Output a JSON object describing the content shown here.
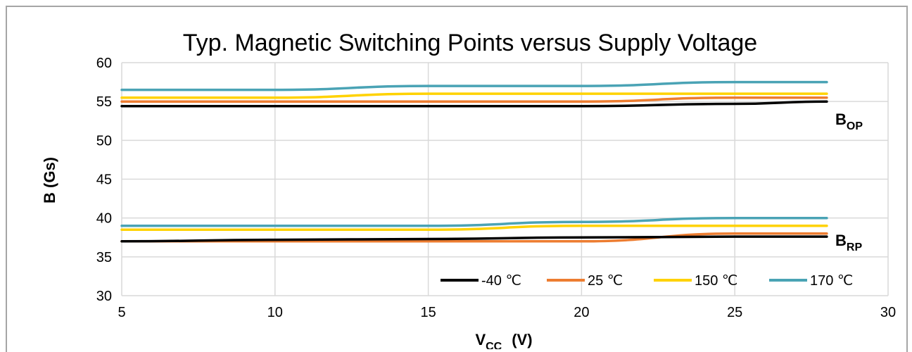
{
  "chart_data": {
    "type": "line",
    "title": "Typ. Magnetic Switching Points versus Supply Voltage",
    "xlabel": {
      "main": "V",
      "sub": "CC",
      "unit": "(V)"
    },
    "ylabel": "B  (Gs)",
    "xlim": [
      5,
      30
    ],
    "ylim": [
      30,
      60
    ],
    "xticks": [
      5,
      10,
      15,
      20,
      25,
      30
    ],
    "yticks": [
      30,
      35,
      40,
      45,
      50,
      55,
      60
    ],
    "grid": true,
    "legend": "bottom-right",
    "x": [
      5,
      10,
      15,
      20,
      25,
      28
    ],
    "series": [
      {
        "name": "-40 ℃",
        "color": "#000000",
        "group": "BOP",
        "values": [
          54.4,
          54.4,
          54.4,
          54.4,
          54.7,
          55.0
        ]
      },
      {
        "name": "25 ℃",
        "color": "#ed7d31",
        "group": "BOP",
        "values": [
          55.0,
          55.0,
          55.0,
          55.0,
          55.5,
          55.5
        ]
      },
      {
        "name": "150 ℃",
        "color": "#ffd200",
        "group": "BOP",
        "values": [
          55.5,
          55.5,
          56.0,
          56.0,
          56.0,
          56.0
        ]
      },
      {
        "name": "170 ℃",
        "color": "#4aa3b5",
        "group": "BOP",
        "values": [
          56.5,
          56.5,
          57.0,
          57.0,
          57.5,
          57.5
        ]
      },
      {
        "name": "-40 ℃",
        "color": "#000000",
        "group": "BRP",
        "values": [
          37.0,
          37.2,
          37.3,
          37.5,
          37.6,
          37.6
        ]
      },
      {
        "name": "25 ℃",
        "color": "#ed7d31",
        "group": "BRP",
        "values": [
          37.0,
          37.0,
          37.0,
          37.0,
          38.0,
          38.0
        ]
      },
      {
        "name": "150 ℃",
        "color": "#ffd200",
        "group": "BRP",
        "values": [
          38.5,
          38.5,
          38.5,
          39.0,
          39.0,
          39.0
        ]
      },
      {
        "name": "170 ℃",
        "color": "#4aa3b5",
        "group": "BRP",
        "values": [
          39.0,
          39.0,
          39.0,
          39.5,
          40.0,
          40.0
        ]
      }
    ],
    "annotations": [
      {
        "main": "B",
        "sub": "OP"
      },
      {
        "main": "B",
        "sub": "RP"
      }
    ]
  }
}
